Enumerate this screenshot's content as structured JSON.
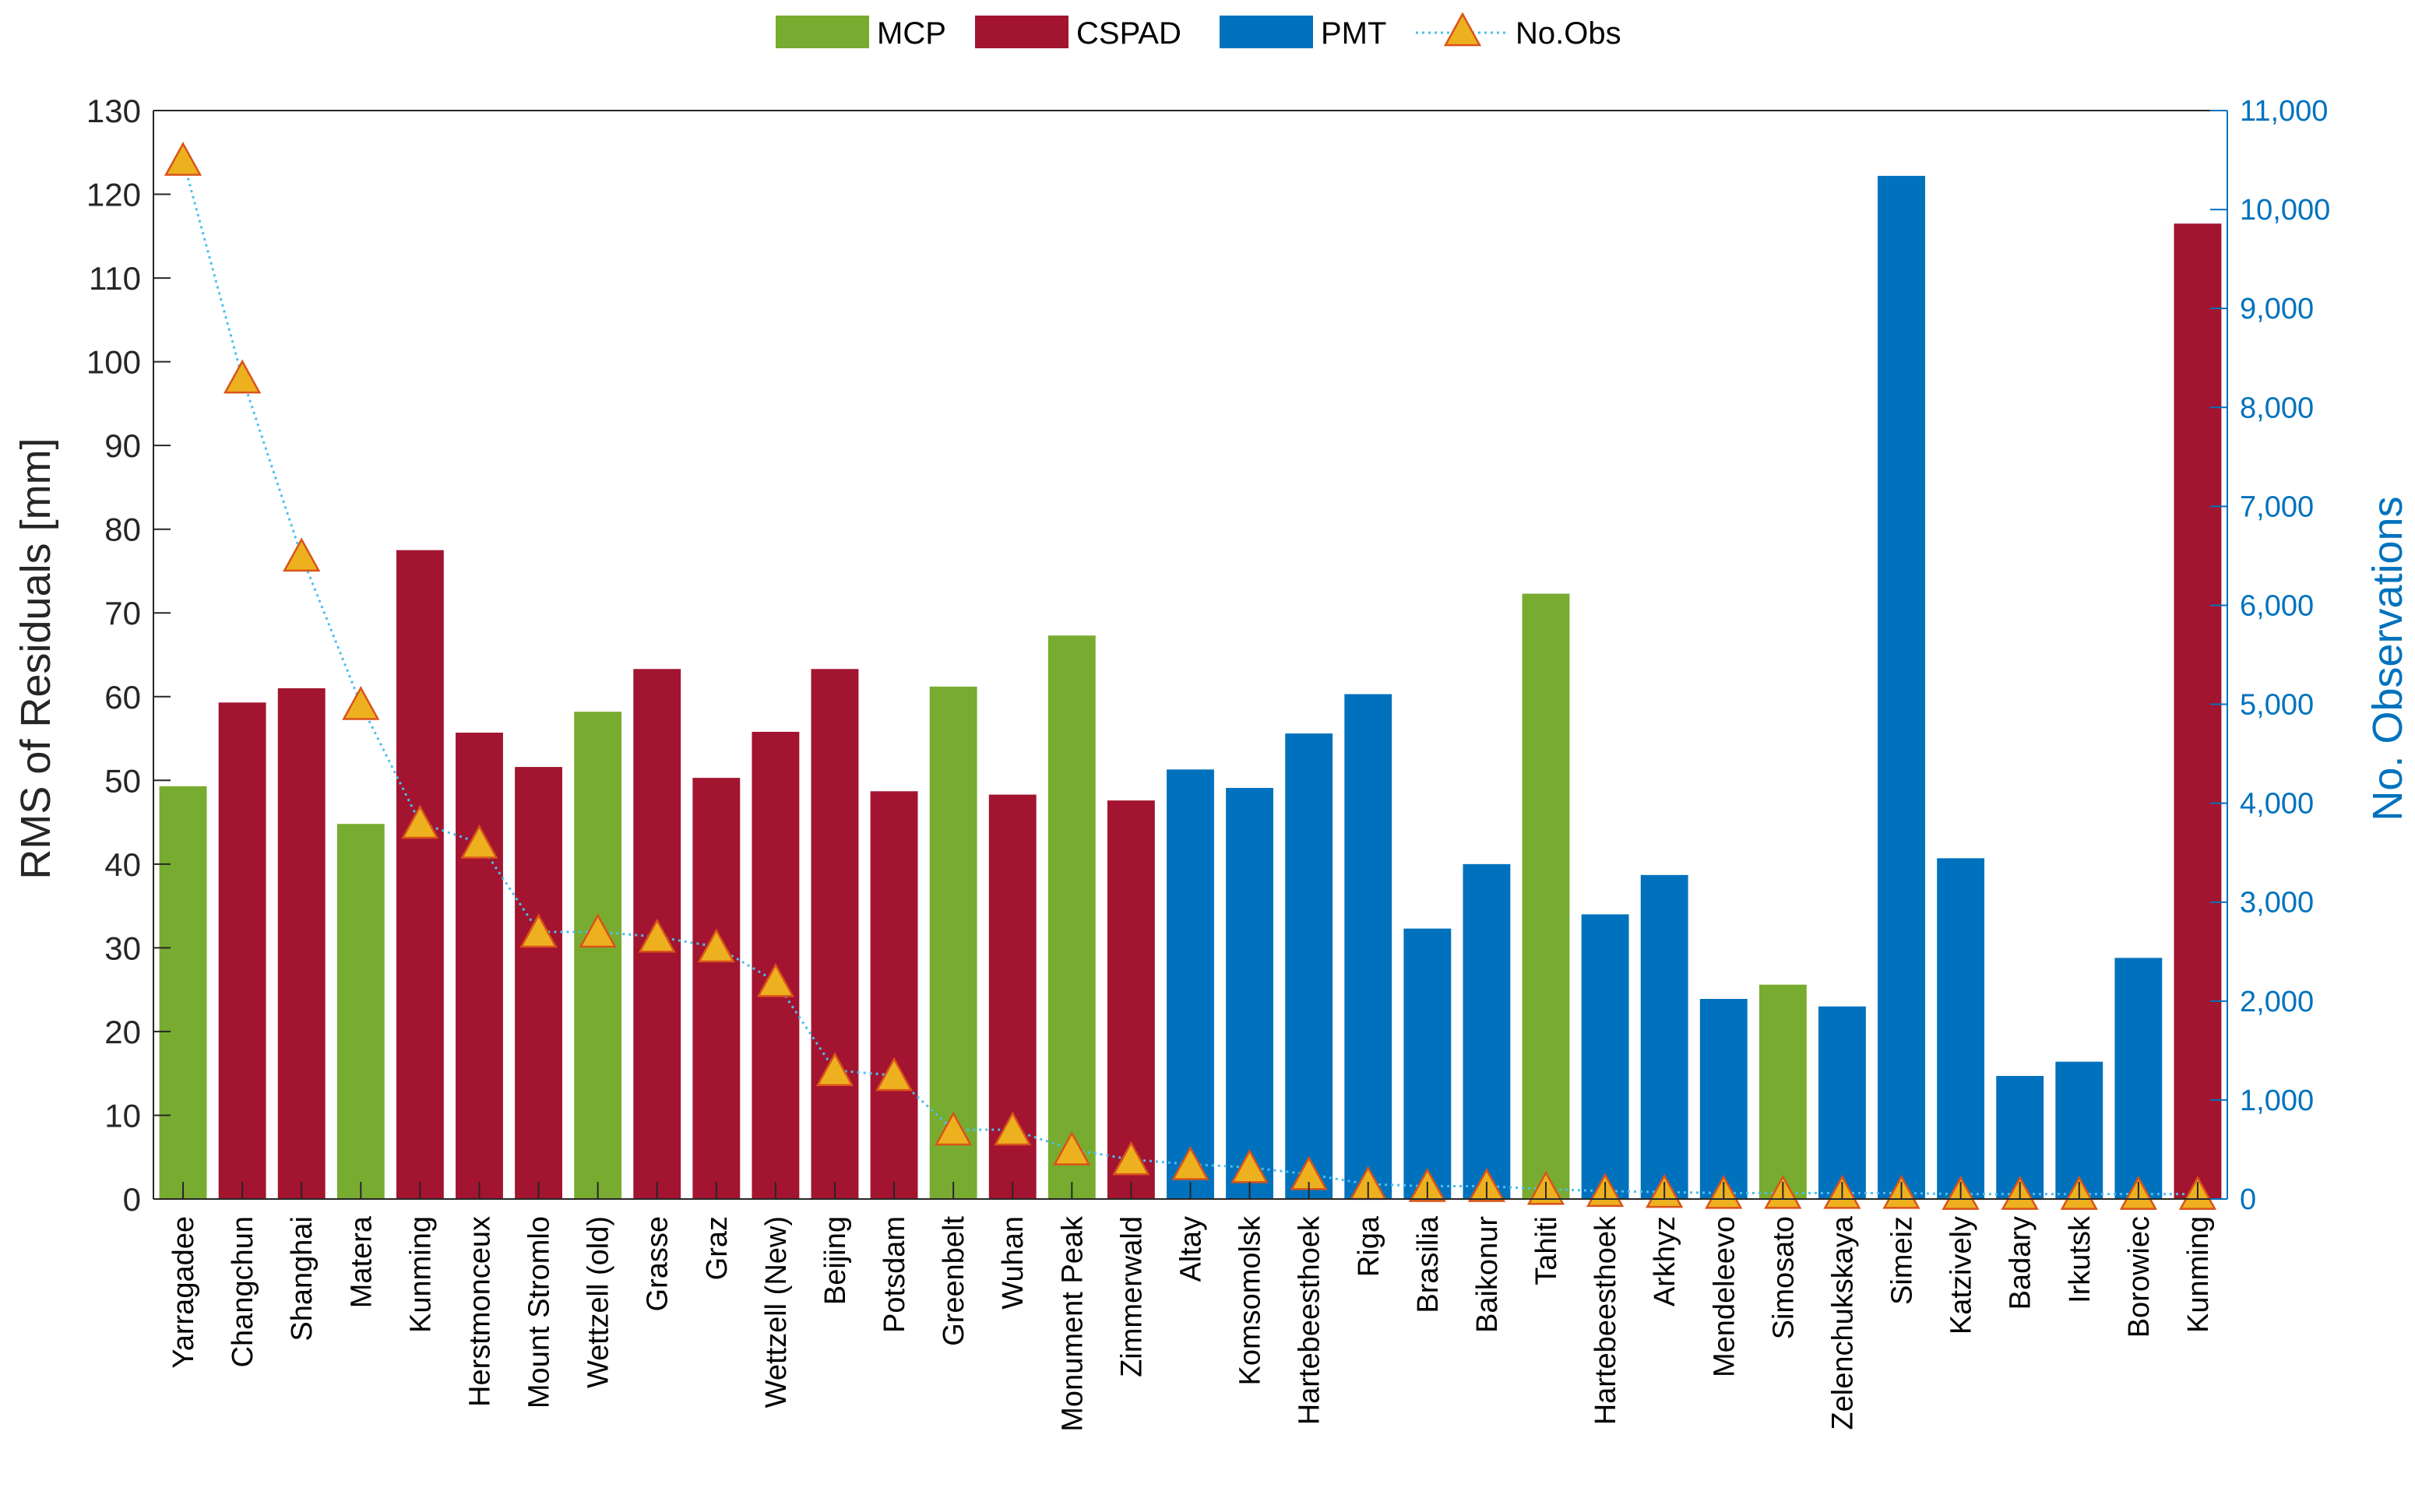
{
  "chart_data": {
    "type": "bar",
    "categories": [
      "Yarragadee",
      "Changchun",
      "Shanghai",
      "Matera",
      "Kunming",
      "Herstmonceux",
      "Mount Stromlo",
      "Wettzell (old)",
      "Grasse",
      "Graz",
      "Wettzell (New)",
      "Beijing",
      "Potsdam",
      "Greenbelt",
      "Wuhan",
      "Monument Peak",
      "Zimmerwald",
      "Altay",
      "Komsomolsk",
      "Hartebeesthoek",
      "Riga",
      "Brasilia",
      "Baikonur",
      "Tahiti",
      "Hartebeesthoek",
      "Arkhyz",
      "Mendeleevo",
      "Simosato",
      "Zelenchukskaya",
      "Simeiz",
      "Katzively",
      "Badary",
      "Irkutsk",
      "Borowiec",
      "Kunming"
    ],
    "detector": [
      "MCP",
      "CSPAD",
      "CSPAD",
      "MCP",
      "CSPAD",
      "CSPAD",
      "CSPAD",
      "MCP",
      "CSPAD",
      "CSPAD",
      "CSPAD",
      "CSPAD",
      "CSPAD",
      "MCP",
      "CSPAD",
      "MCP",
      "CSPAD",
      "PMT",
      "PMT",
      "PMT",
      "PMT",
      "PMT",
      "PMT",
      "MCP",
      "PMT",
      "PMT",
      "PMT",
      "MCP",
      "PMT",
      "PMT",
      "PMT",
      "PMT",
      "PMT",
      "PMT",
      "CSPAD"
    ],
    "series": [
      {
        "name": "RMS of Residuals",
        "axis": "left",
        "values": [
          49.3,
          59.3,
          61,
          44.8,
          77.5,
          55.7,
          51.6,
          58.2,
          63.3,
          50.3,
          55.8,
          63.3,
          48.7,
          61.2,
          48.3,
          67.3,
          47.6,
          51.3,
          49.1,
          55.6,
          60.3,
          32.3,
          40,
          72.3,
          34,
          38.7,
          23.9,
          25.6,
          23,
          122.2,
          40.7,
          14.7,
          16.4,
          28.8,
          116.5
        ]
      },
      {
        "name": "No.Obs",
        "axis": "right",
        "values": [
          10500,
          8300,
          6500,
          5000,
          3800,
          3600,
          2700,
          2700,
          2650,
          2550,
          2200,
          1300,
          1250,
          700,
          700,
          500,
          400,
          350,
          320,
          250,
          150,
          130,
          130,
          100,
          80,
          70,
          60,
          60,
          60,
          60,
          50,
          50,
          50,
          50,
          50
        ]
      }
    ],
    "legend": [
      "MCP",
      "CSPAD",
      "PMT",
      "No.Obs"
    ],
    "legend_position": "top-center",
    "colors": {
      "MCP": "#77ac30",
      "CSPAD": "#a2142f",
      "PMT": "#0072bd",
      "No.Obs": "#edb120",
      "No.Obs_edge": "#d95319"
    },
    "ylabel": "RMS of Residuals [mm]",
    "ylabel_right": "No. Observations",
    "ylim": [
      0,
      130
    ],
    "ylim_right": [
      0,
      11000
    ],
    "yticks": [
      "0",
      "10",
      "20",
      "30",
      "40",
      "50",
      "60",
      "70",
      "80",
      "90",
      "100",
      "110",
      "120",
      "130"
    ],
    "yticks_right": [
      "0",
      "1,000",
      "2,000",
      "3,000",
      "4,000",
      "5,000",
      "6,000",
      "7,000",
      "8,000",
      "9,000",
      "10,000",
      "11,000"
    ],
    "grid": false
  }
}
